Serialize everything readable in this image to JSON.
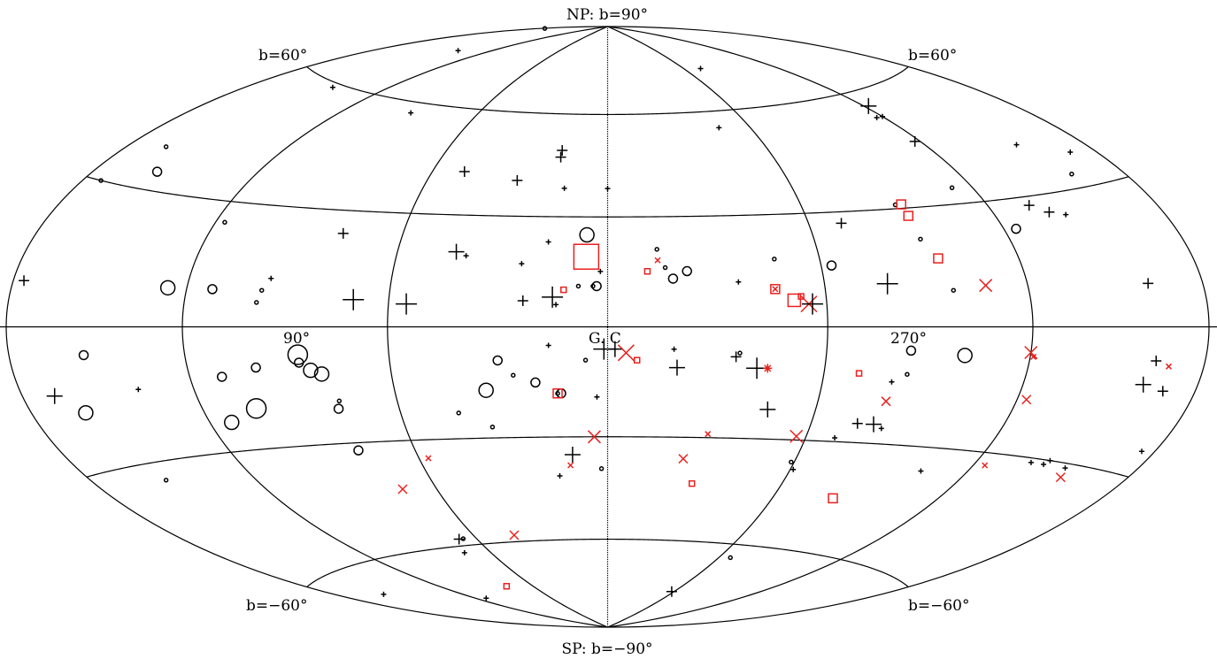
{
  "map": {
    "projection": "Aitoff-Hammer, Galactic coordinates",
    "labels": {
      "north_pole": "NP: b=90°",
      "south_pole": "SP: b=−90°",
      "b_plus60_left": "b=60°",
      "b_plus60_right": "b=60°",
      "b_minus60_left": "b=−60°",
      "b_minus60_right": "b=−60°",
      "lon_90": "90°",
      "galactic_center": "G. C",
      "lon_270": "270°"
    },
    "colors": {
      "black": "#000000",
      "red": "#e8201e"
    },
    "marker_legend": {
      "circle": "open circle",
      "plus": "plus sign",
      "square": "open square",
      "cross": "x cross",
      "star": "asterisk"
    }
  },
  "chart_data": {
    "type": "scatter",
    "note": "Objects plotted in galactic coordinates; l = galactic longitude (deg), b = galactic latitude (deg); size = relative marker size (1 small .. 5 large)",
    "l_range": [
      180,
      -180
    ],
    "b_range": [
      -90,
      90
    ],
    "points": [
      {
        "l": 178,
        "b": 84,
        "m": "circle",
        "c": "black",
        "s": 1
      },
      {
        "l": 141,
        "b": 74,
        "m": "plus",
        "c": "black",
        "s": 1
      },
      {
        "l": -72,
        "b": 73,
        "m": "plus",
        "c": "black",
        "s": 1
      },
      {
        "l": 145,
        "b": 59,
        "m": "plus",
        "c": "black",
        "s": 1
      },
      {
        "l": 90,
        "b": 57,
        "m": "plus",
        "c": "black",
        "s": 1
      },
      {
        "l": -47,
        "b": 55,
        "m": "plus",
        "c": "black",
        "s": 1
      },
      {
        "l": -122,
        "b": 56,
        "m": "plus",
        "c": "black",
        "s": 3
      },
      {
        "l": -117,
        "b": 53,
        "m": "plus",
        "c": "black",
        "s": 1
      },
      {
        "l": -120,
        "b": 53,
        "m": "plus",
        "c": "black",
        "s": 1
      },
      {
        "l": 17,
        "b": 49,
        "m": "plus",
        "c": "black",
        "s": 2
      },
      {
        "l": 17,
        "b": 47,
        "m": "plus",
        "c": "black",
        "s": 2
      },
      {
        "l": 49,
        "b": 42,
        "m": "plus",
        "c": "black",
        "s": 2
      },
      {
        "l": -118,
        "b": 46,
        "m": "plus",
        "c": "black",
        "s": 2
      },
      {
        "l": 165,
        "b": 39,
        "m": "circle",
        "c": "black",
        "s": 1
      },
      {
        "l": 30,
        "b": 40,
        "m": "plus",
        "c": "black",
        "s": 2
      },
      {
        "l": 14,
        "b": 38,
        "m": "plus",
        "c": "black",
        "s": 1
      },
      {
        "l": 0,
        "b": 38,
        "m": "plus",
        "c": "black",
        "s": 1
      },
      {
        "l": -154,
        "b": 41,
        "m": "plus",
        "c": "black",
        "s": 1
      },
      {
        "l": -170,
        "b": 37,
        "m": "plus",
        "c": "black",
        "s": 1
      },
      {
        "l": 156,
        "b": 34,
        "m": "circle",
        "c": "black",
        "s": 2
      },
      {
        "l": 173,
        "b": 30,
        "m": "circle",
        "c": "black",
        "s": 1
      },
      {
        "l": -113,
        "b": 34,
        "m": "circle",
        "c": "black",
        "s": 1
      },
      {
        "l": -160,
        "b": 33,
        "m": "circle",
        "c": "black",
        "s": 1
      },
      {
        "l": -90,
        "b": 31,
        "m": "circle",
        "c": "black",
        "s": 1
      },
      {
        "l": -92,
        "b": 31,
        "m": "square",
        "c": "red",
        "s": 2
      },
      {
        "l": -92,
        "b": 28,
        "m": "square",
        "c": "red",
        "s": 2
      },
      {
        "l": -134,
        "b": 28,
        "m": "plus",
        "c": "black",
        "s": 2
      },
      {
        "l": -139,
        "b": 26,
        "m": "plus",
        "c": "black",
        "s": 2
      },
      {
        "l": -70,
        "b": 27,
        "m": "plus",
        "c": "black",
        "s": 2
      },
      {
        "l": -144,
        "b": 25,
        "m": "plus",
        "c": "black",
        "s": 1
      },
      {
        "l": 117,
        "b": 25,
        "m": "circle",
        "c": "black",
        "s": 1
      },
      {
        "l": 78,
        "b": 24,
        "m": "plus",
        "c": "black",
        "s": 2
      },
      {
        "l": 6,
        "b": 25,
        "m": "circle",
        "c": "black",
        "s": 3
      },
      {
        "l": 17,
        "b": 23,
        "m": "plus",
        "c": "black",
        "s": 1
      },
      {
        "l": -124,
        "b": 23,
        "m": "circle",
        "c": "black",
        "s": 2
      },
      {
        "l": -92,
        "b": 22,
        "m": "circle",
        "c": "black",
        "s": 1
      },
      {
        "l": 43,
        "b": 20,
        "m": "plus",
        "c": "black",
        "s": 3
      },
      {
        "l": 40,
        "b": 19,
        "m": "plus",
        "c": "black",
        "s": 1
      },
      {
        "l": -14,
        "b": 21,
        "m": "circle",
        "c": "black",
        "s": 1
      },
      {
        "l": 6,
        "b": 19,
        "m": "square",
        "c": "red",
        "s": 4
      },
      {
        "l": -14,
        "b": 18,
        "m": "cross",
        "c": "red",
        "s": 1
      },
      {
        "l": -47,
        "b": 18,
        "m": "circle",
        "c": "black",
        "s": 1
      },
      {
        "l": -95,
        "b": 17,
        "m": "square",
        "c": "red",
        "s": 2
      },
      {
        "l": 24,
        "b": 17,
        "m": "plus",
        "c": "black",
        "s": 1
      },
      {
        "l": -63,
        "b": 16,
        "m": "circle",
        "c": "black",
        "s": 2
      },
      {
        "l": -16,
        "b": 16,
        "m": "circle",
        "c": "black",
        "s": 1
      },
      {
        "l": -22,
        "b": 15,
        "m": "circle",
        "c": "black",
        "s": 2
      },
      {
        "l": 2,
        "b": 15,
        "m": "plus",
        "c": "black",
        "s": 1
      },
      {
        "l": -11,
        "b": 15,
        "m": "square",
        "c": "red",
        "s": 1
      },
      {
        "l": -18,
        "b": 13,
        "m": "circle",
        "c": "black",
        "s": 2
      },
      {
        "l": 95,
        "b": 12,
        "m": "plus",
        "c": "black",
        "s": 1
      },
      {
        "l": -36,
        "b": 12,
        "m": "plus",
        "c": "black",
        "s": 1
      },
      {
        "l": 3,
        "b": 11,
        "m": "circle",
        "c": "black",
        "s": 2
      },
      {
        "l": 4,
        "b": 11,
        "m": "circle",
        "c": "black",
        "s": 1
      },
      {
        "l": 8,
        "b": 11,
        "m": "circle",
        "c": "black",
        "s": 1
      },
      {
        "l": -78,
        "b": 11,
        "m": "plus",
        "c": "black",
        "s": 4
      },
      {
        "l": -107,
        "b": 10,
        "m": "cross",
        "c": "red",
        "s": 3
      },
      {
        "l": -46,
        "b": 10,
        "m": "square",
        "c": "red",
        "s": 2
      },
      {
        "l": -46,
        "b": 10,
        "m": "cross",
        "c": "red",
        "s": 1
      },
      {
        "l": -97,
        "b": 9,
        "m": "circle",
        "c": "black",
        "s": 1
      },
      {
        "l": -160,
        "b": 9,
        "m": "plus",
        "c": "black",
        "s": 2
      },
      {
        "l": 176,
        "b": 9,
        "m": "plus",
        "c": "black",
        "s": 2
      },
      {
        "l": 126,
        "b": 9,
        "m": "circle",
        "c": "black",
        "s": 3
      },
      {
        "l": 112,
        "b": 9,
        "m": "circle",
        "c": "black",
        "s": 2
      },
      {
        "l": 12,
        "b": 10,
        "m": "square",
        "c": "red",
        "s": 1
      },
      {
        "l": 97,
        "b": 9,
        "m": "circle",
        "c": "black",
        "s": 1
      },
      {
        "l": 15,
        "b": 8,
        "m": "plus",
        "c": "black",
        "s": 4
      },
      {
        "l": -51,
        "b": 7,
        "m": "square",
        "c": "red",
        "s": 3
      },
      {
        "l": -53,
        "b": 8,
        "m": "square",
        "c": "red",
        "s": 1
      },
      {
        "l": 70,
        "b": 7,
        "m": "plus",
        "c": "black",
        "s": 4
      },
      {
        "l": 23,
        "b": 7,
        "m": "plus",
        "c": "black",
        "s": 2
      },
      {
        "l": 98,
        "b": 6,
        "m": "circle",
        "c": "black",
        "s": 1
      },
      {
        "l": 55,
        "b": 6,
        "m": "plus",
        "c": "black",
        "s": 4
      },
      {
        "l": 14,
        "b": 6,
        "m": "plus",
        "c": "black",
        "s": 1
      },
      {
        "l": -55,
        "b": 6,
        "m": "cross",
        "c": "red",
        "s": 4
      },
      {
        "l": -56,
        "b": 6,
        "m": "plus",
        "c": "black",
        "s": 4
      },
      {
        "l": 1,
        "b": -6,
        "m": "plus",
        "c": "black",
        "s": 4
      },
      {
        "l": 16,
        "b": -5,
        "m": "plus",
        "c": "black",
        "s": 1
      },
      {
        "l": 153,
        "b": -6,
        "m": "circle",
        "c": "black",
        "s": 2
      },
      {
        "l": 86,
        "b": -7,
        "m": "circle",
        "c": "black",
        "s": 4
      },
      {
        "l": -2,
        "b": -6,
        "m": "plus",
        "c": "black",
        "s": 3
      },
      {
        "l": -5,
        "b": -7,
        "m": "cross",
        "c": "red",
        "s": 4
      },
      {
        "l": -18,
        "b": -6,
        "m": "plus",
        "c": "black",
        "s": 1
      },
      {
        "l": -36,
        "b": -7,
        "m": "circle",
        "c": "black",
        "s": 1
      },
      {
        "l": -84,
        "b": -6,
        "m": "circle",
        "c": "black",
        "s": 2
      },
      {
        "l": -100,
        "b": -7,
        "m": "circle",
        "c": "black",
        "s": 3
      },
      {
        "l": -120,
        "b": -6,
        "m": "cross",
        "c": "red",
        "s": 3
      },
      {
        "l": -121,
        "b": -7,
        "m": "cross",
        "c": "red",
        "s": 1
      },
      {
        "l": -162,
        "b": -7,
        "m": "plus",
        "c": "black",
        "s": 2
      },
      {
        "l": -167,
        "b": -8,
        "m": "cross",
        "c": "red",
        "s": 1
      },
      {
        "l": -35,
        "b": -8,
        "m": "plus",
        "c": "black",
        "s": 2
      },
      {
        "l": 86,
        "b": -9,
        "m": "circle",
        "c": "black",
        "s": 2
      },
      {
        "l": 30,
        "b": -9,
        "m": "circle",
        "c": "black",
        "s": 2
      },
      {
        "l": 6,
        "b": -9,
        "m": "circle",
        "c": "black",
        "s": 1
      },
      {
        "l": -8,
        "b": -9,
        "m": "square",
        "c": "red",
        "s": 1
      },
      {
        "l": 99,
        "b": -10,
        "m": "circle",
        "c": "black",
        "s": 2
      },
      {
        "l": 83,
        "b": -11,
        "m": "circle",
        "c": "black",
        "s": 3
      },
      {
        "l": 80,
        "b": -12,
        "m": "circle",
        "c": "black",
        "s": 3
      },
      {
        "l": 110,
        "b": -12,
        "m": "circle",
        "c": "black",
        "s": 2
      },
      {
        "l": -19,
        "b": -11,
        "m": "plus",
        "c": "black",
        "s": 3
      },
      {
        "l": -41,
        "b": -11,
        "m": "plus",
        "c": "black",
        "s": 4
      },
      {
        "l": -44,
        "b": -11,
        "m": "star",
        "c": "red",
        "s": 2
      },
      {
        "l": -70,
        "b": -12,
        "m": "square",
        "c": "red",
        "s": 1
      },
      {
        "l": -84,
        "b": -12,
        "m": "circle",
        "c": "black",
        "s": 1
      },
      {
        "l": 26,
        "b": -13,
        "m": "circle",
        "c": "black",
        "s": 1
      },
      {
        "l": -160,
        "b": -12,
        "m": "plus",
        "c": "black",
        "s": 3
      },
      {
        "l": -168,
        "b": -13,
        "m": "plus",
        "c": "black",
        "s": 2
      },
      {
        "l": 138,
        "b": -14,
        "m": "plus",
        "c": "black",
        "s": 1
      },
      {
        "l": 20,
        "b": -15,
        "m": "circle",
        "c": "black",
        "s": 2
      },
      {
        "l": 168,
        "b": -14,
        "m": "plus",
        "c": "black",
        "s": 3
      },
      {
        "l": -80,
        "b": -14,
        "m": "plus",
        "c": "black",
        "s": 1
      },
      {
        "l": 34,
        "b": -17,
        "m": "circle",
        "c": "black",
        "s": 3
      },
      {
        "l": 13,
        "b": -18,
        "m": "circle",
        "c": "black",
        "s": 2
      },
      {
        "l": 160,
        "b": -18,
        "m": "circle",
        "c": "black",
        "s": 3
      },
      {
        "l": 14,
        "b": -18,
        "m": "square",
        "c": "red",
        "s": 2
      },
      {
        "l": 14,
        "b": -18,
        "m": "circle",
        "c": "black",
        "s": 1
      },
      {
        "l": 3,
        "b": -19,
        "m": "plus",
        "c": "black",
        "s": 1
      },
      {
        "l": 103,
        "b": -20,
        "m": "circle",
        "c": "black",
        "s": 4
      },
      {
        "l": 78,
        "b": -21,
        "m": "circle",
        "c": "black",
        "s": 2
      },
      {
        "l": 77,
        "b": -19,
        "m": "circle",
        "c": "black",
        "s": 1
      },
      {
        "l": -80,
        "b": -19,
        "m": "cross",
        "c": "red",
        "s": 2
      },
      {
        "l": -123,
        "b": -17,
        "m": "cross",
        "c": "red",
        "s": 2
      },
      {
        "l": -46,
        "b": -22,
        "m": "plus",
        "c": "black",
        "s": 3
      },
      {
        "l": 43,
        "b": -23,
        "m": "circle",
        "c": "black",
        "s": 1
      },
      {
        "l": 113,
        "b": -23,
        "m": "circle",
        "c": "black",
        "s": 3
      },
      {
        "l": -74,
        "b": -25,
        "m": "plus",
        "c": "black",
        "s": 2
      },
      {
        "l": -79,
        "b": -25,
        "m": "plus",
        "c": "black",
        "s": 3
      },
      {
        "l": -82,
        "b": -26,
        "m": "plus",
        "c": "black",
        "s": 1
      },
      {
        "l": -175,
        "b": -25,
        "m": "plus",
        "c": "black",
        "s": 1
      },
      {
        "l": 34,
        "b": -27,
        "m": "circle",
        "c": "black",
        "s": 1
      },
      {
        "l": -57,
        "b": -29,
        "m": "cross",
        "c": "red",
        "s": 3
      },
      {
        "l": -69,
        "b": -29,
        "m": "plus",
        "c": "black",
        "s": 1
      },
      {
        "l": -30,
        "b": -29,
        "m": "cross",
        "c": "red",
        "s": 1
      },
      {
        "l": 4,
        "b": -30,
        "m": "cross",
        "c": "red",
        "s": 3
      },
      {
        "l": 78,
        "b": -32,
        "m": "circle",
        "c": "black",
        "s": 2
      },
      {
        "l": -145,
        "b": -30,
        "m": "plus",
        "c": "black",
        "s": 1
      },
      {
        "l": -139,
        "b": -31,
        "m": "plus",
        "c": "black",
        "s": 1
      },
      {
        "l": -144,
        "b": -31,
        "m": "plus",
        "c": "black",
        "s": 1
      },
      {
        "l": -153,
        "b": -31,
        "m": "plus",
        "c": "black",
        "s": 1
      },
      {
        "l": 152,
        "b": -34,
        "m": "circle",
        "c": "black",
        "s": 1
      },
      {
        "l": 11,
        "b": -35,
        "m": "plus",
        "c": "black",
        "s": 3
      },
      {
        "l": 12,
        "b": -38,
        "m": "cross",
        "c": "red",
        "s": 1
      },
      {
        "l": -24,
        "b": -36,
        "m": "cross",
        "c": "red",
        "s": 2
      },
      {
        "l": -59,
        "b": -36,
        "m": "circle",
        "c": "black",
        "s": 1
      },
      {
        "l": -61,
        "b": -38,
        "m": "plus",
        "c": "black",
        "s": 1
      },
      {
        "l": 57,
        "b": -35,
        "m": "cross",
        "c": "red",
        "s": 1
      },
      {
        "l": -124,
        "b": -33,
        "m": "cross",
        "c": "red",
        "s": 1
      },
      {
        "l": -155,
        "b": -33,
        "m": "cross",
        "c": "red",
        "s": 2
      },
      {
        "l": -104,
        "b": -36,
        "m": "plus",
        "c": "black",
        "s": 1
      },
      {
        "l": 2,
        "b": -39,
        "m": "circle",
        "c": "black",
        "s": 1
      },
      {
        "l": 16,
        "b": -41,
        "m": "plus",
        "c": "black",
        "s": 1
      },
      {
        "l": 72,
        "b": -43,
        "m": "cross",
        "c": "red",
        "s": 2
      },
      {
        "l": -29,
        "b": -43,
        "m": "square",
        "c": "red",
        "s": 1
      },
      {
        "l": -82,
        "b": -45,
        "m": "square",
        "c": "red",
        "s": 2
      },
      {
        "l": 66,
        "b": -58,
        "m": "circle",
        "c": "black",
        "s": 1
      },
      {
        "l": 73,
        "b": -62,
        "m": "plus",
        "c": "black",
        "s": 1
      },
      {
        "l": 68,
        "b": -58,
        "m": "plus",
        "c": "black",
        "s": 2
      },
      {
        "l": 42,
        "b": -58,
        "m": "cross",
        "c": "red",
        "s": 2
      },
      {
        "l": -66,
        "b": -64,
        "m": "circle",
        "c": "black",
        "s": 1
      },
      {
        "l": 160,
        "b": -67,
        "m": "plus",
        "c": "black",
        "s": 1
      },
      {
        "l": 113,
        "b": -75,
        "m": "plus",
        "c": "black",
        "s": 1
      },
      {
        "l": 79,
        "b": -73,
        "m": "square",
        "c": "red",
        "s": 1
      },
      {
        "l": -58,
        "b": -76,
        "m": "plus",
        "c": "black",
        "s": 2
      }
    ]
  }
}
